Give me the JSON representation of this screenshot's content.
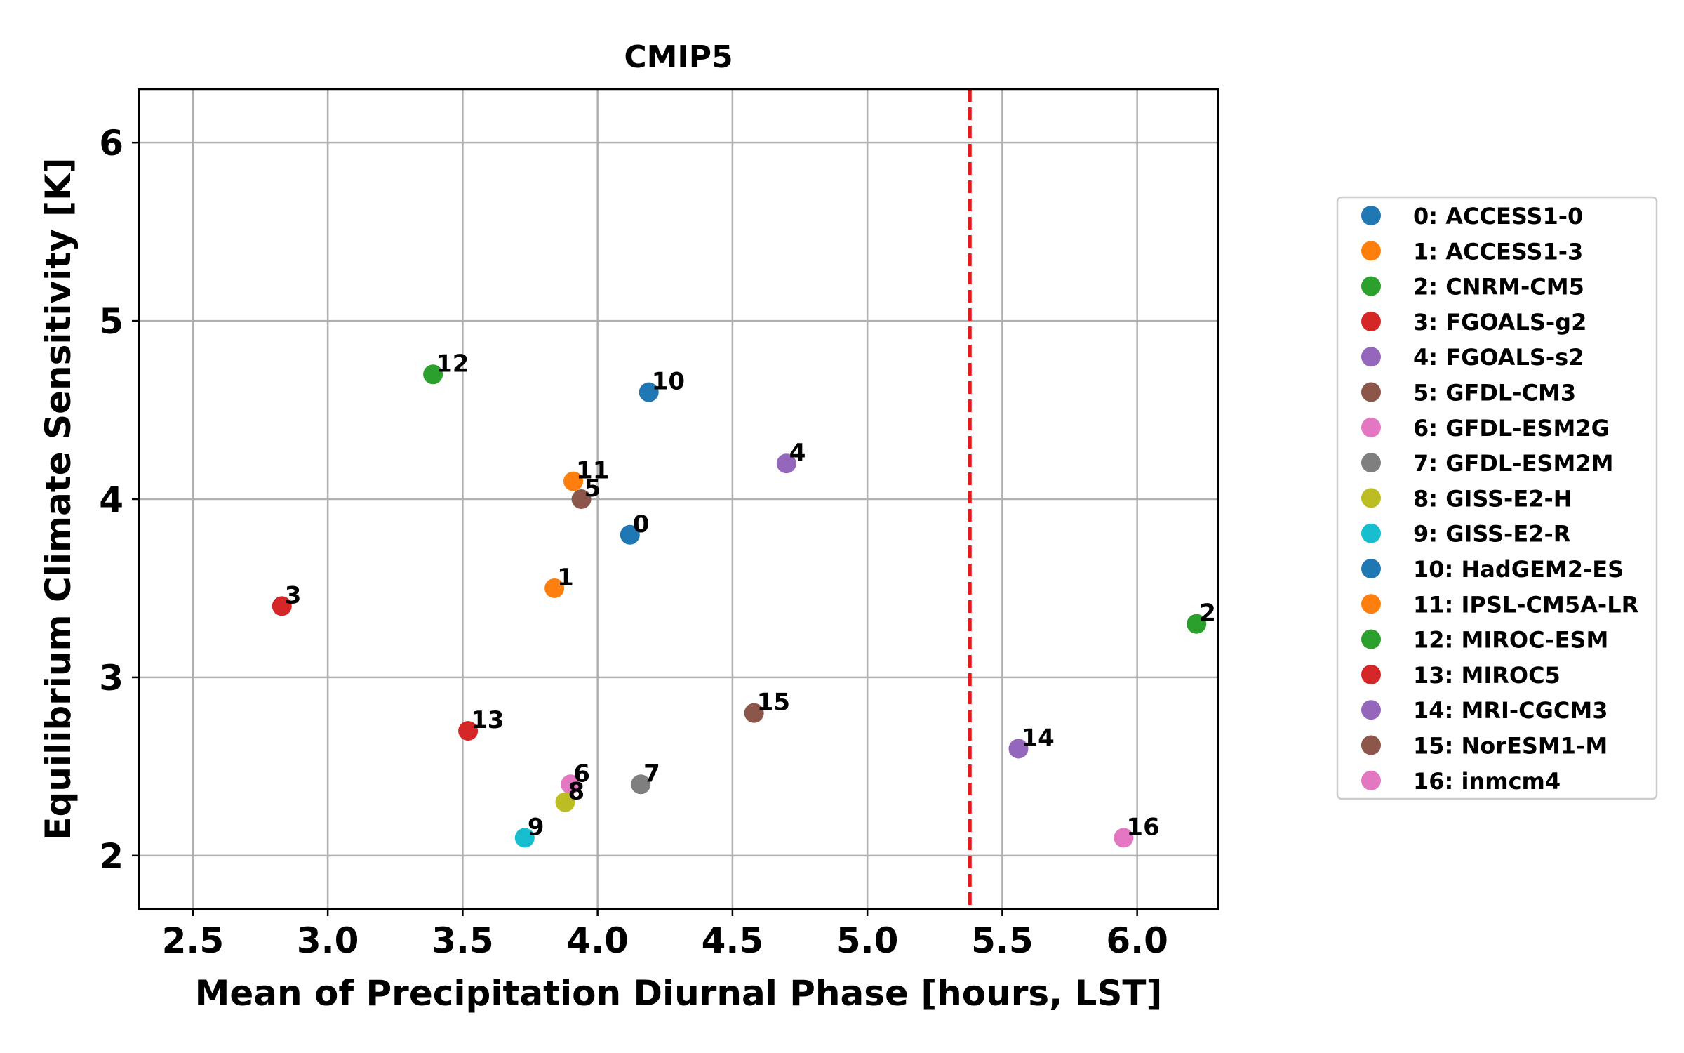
{
  "chart_data": {
    "type": "scatter",
    "title": "CMIP5",
    "xlabel": "Mean of Precipitation Diurnal Phase [hours, LST]",
    "ylabel": "Equilibrium Climate Sensitivity [K]",
    "xlim": [
      2.3,
      6.3
    ],
    "ylim": [
      1.7,
      6.3
    ],
    "x_ticks": [
      2.5,
      3.0,
      3.5,
      4.0,
      4.5,
      5.0,
      5.5,
      6.0
    ],
    "x_tick_labels": [
      "2.5",
      "3.0",
      "3.5",
      "4.0",
      "4.5",
      "5.0",
      "5.5",
      "6.0"
    ],
    "y_ticks": [
      2,
      3,
      4,
      5,
      6
    ],
    "y_tick_labels": [
      "2",
      "3",
      "4",
      "5",
      "6"
    ],
    "grid": true,
    "legend_position": "outside-right",
    "reference_line": {
      "orientation": "vertical",
      "x": 5.38,
      "color": "#e41a1c",
      "style": "dashed"
    },
    "points": [
      {
        "label": "0",
        "model": "0: ACCESS1-0",
        "x": 4.12,
        "y": 3.8,
        "color": "#1f77b4"
      },
      {
        "label": "1",
        "model": "1: ACCESS1-3",
        "x": 3.84,
        "y": 3.5,
        "color": "#ff7f0e"
      },
      {
        "label": "2",
        "model": "2: CNRM-CM5",
        "x": 6.22,
        "y": 3.3,
        "color": "#2ca02c"
      },
      {
        "label": "3",
        "model": "3: FGOALS-g2",
        "x": 2.83,
        "y": 3.4,
        "color": "#d62728"
      },
      {
        "label": "4",
        "model": "4: FGOALS-s2",
        "x": 4.7,
        "y": 4.2,
        "color": "#9467bd"
      },
      {
        "label": "5",
        "model": "5: GFDL-CM3",
        "x": 3.94,
        "y": 4.0,
        "color": "#8c564b"
      },
      {
        "label": "6",
        "model": "6: GFDL-ESM2G",
        "x": 3.9,
        "y": 2.4,
        "color": "#e377c2"
      },
      {
        "label": "7",
        "model": "7: GFDL-ESM2M",
        "x": 4.16,
        "y": 2.4,
        "color": "#7f7f7f"
      },
      {
        "label": "8",
        "model": "8: GISS-E2-H",
        "x": 3.88,
        "y": 2.3,
        "color": "#bcbd22"
      },
      {
        "label": "9",
        "model": "9: GISS-E2-R",
        "x": 3.73,
        "y": 2.1,
        "color": "#17becf"
      },
      {
        "label": "10",
        "model": "10: HadGEM2-ES",
        "x": 4.19,
        "y": 4.6,
        "color": "#1f77b4"
      },
      {
        "label": "11",
        "model": "11: IPSL-CM5A-LR",
        "x": 3.91,
        "y": 4.1,
        "color": "#ff7f0e"
      },
      {
        "label": "12",
        "model": "12: MIROC-ESM",
        "x": 3.39,
        "y": 4.7,
        "color": "#2ca02c"
      },
      {
        "label": "13",
        "model": "13: MIROC5",
        "x": 3.52,
        "y": 2.7,
        "color": "#d62728"
      },
      {
        "label": "14",
        "model": "14: MRI-CGCM3",
        "x": 5.56,
        "y": 2.6,
        "color": "#9467bd"
      },
      {
        "label": "15",
        "model": "15: NorESM1-M",
        "x": 4.58,
        "y": 2.8,
        "color": "#8c564b"
      },
      {
        "label": "16",
        "model": "16: inmcm4",
        "x": 5.95,
        "y": 2.1,
        "color": "#e377c2"
      }
    ]
  }
}
